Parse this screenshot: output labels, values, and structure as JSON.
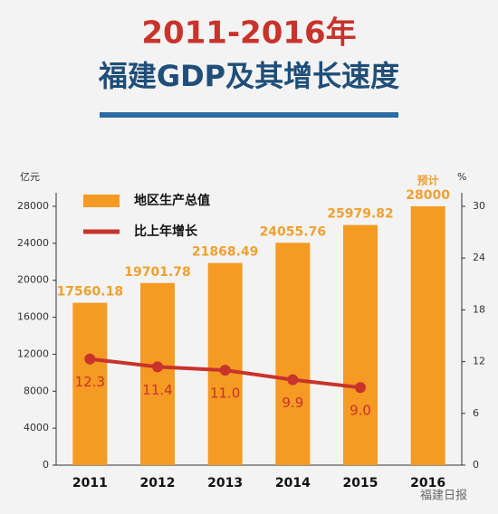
{
  "chart_data": {
    "type": "bar",
    "title": "2011-2016年",
    "subtitle": "福建GDP及其增长速度",
    "y_label": "亿元",
    "y2_label": "%",
    "annotation": "预计",
    "source": "福建日报",
    "categories": [
      "2011",
      "2012",
      "2013",
      "2014",
      "2015",
      "2016"
    ],
    "series": [
      {
        "name": "地区生产总值",
        "type": "bar",
        "color": "#f59a23",
        "values": [
          17560.18,
          19701.78,
          21868.49,
          24055.76,
          25979.82,
          28000
        ]
      },
      {
        "name": "比上年增长",
        "type": "line",
        "axis": "y2",
        "color": "#c8332b",
        "values": [
          12.3,
          11.4,
          11.0,
          9.9,
          9.0,
          null
        ],
        "value_labels": [
          "12.3",
          "11.4",
          "11.0",
          "9.9",
          "9.0",
          null
        ]
      }
    ],
    "ylim": [
      0,
      28000
    ],
    "yticks": [
      0,
      4000,
      8000,
      12000,
      16000,
      20000,
      24000,
      28000
    ],
    "y2lim": [
      0,
      30
    ],
    "y2ticks": [
      0,
      6,
      12,
      18,
      24,
      30
    ],
    "grid": false
  }
}
